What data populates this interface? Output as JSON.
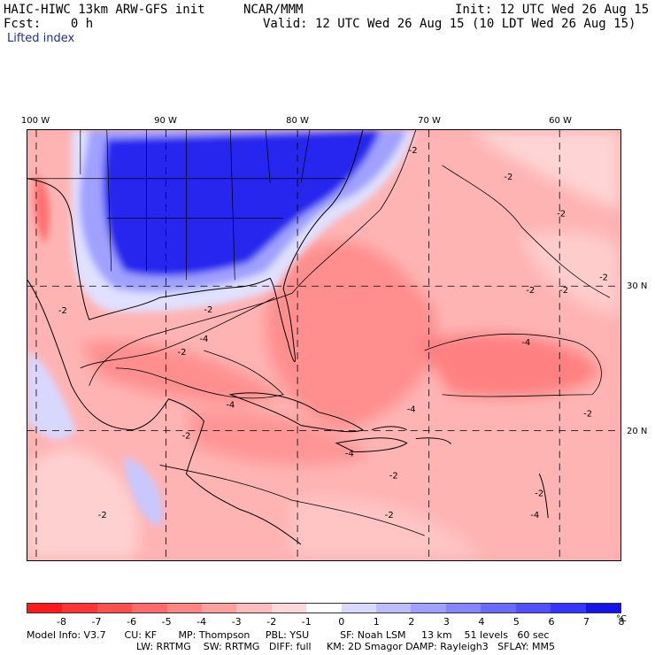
{
  "header": {
    "model": "HAIC-HIWC 13km ARW-GFS init",
    "org": "NCAR/MMM",
    "init": "Init: 12 UTC Wed 26 Aug 15",
    "fcst": "Fcst:    0 h",
    "valid": "Valid: 12 UTC Wed 26 Aug 15 (10 LDT Wed 26 Aug 15)",
    "field": "Lifted index"
  },
  "axes": {
    "lon_labels": [
      "100 W",
      "90 W",
      "80 W",
      "70 W",
      "60 W"
    ],
    "lat_labels": [
      "30 N",
      "20 N"
    ]
  },
  "colorbar": {
    "ticks": [
      "-8",
      "-7",
      "-6",
      "-5",
      "-4",
      "-3",
      "-2",
      "-1",
      "0",
      "1",
      "2",
      "3",
      "4",
      "5",
      "6",
      "7",
      "8"
    ],
    "unit": "°C",
    "colors": [
      "#ff1a1a",
      "#ff3535",
      "#ff5050",
      "#ff6a6a",
      "#ff8585",
      "#ffa0a0",
      "#ffbcbc",
      "#ffd9d9",
      "#ffffff",
      "#dadaff",
      "#bcbcff",
      "#a0a0ff",
      "#8585ff",
      "#6a6aff",
      "#5050ff",
      "#3535ff",
      "#1414e6"
    ]
  },
  "contour_labels": [
    "-2",
    "-2",
    "-2",
    "-2",
    "-2",
    "-2",
    "-2",
    "-2",
    "-4",
    "-4",
    "-4",
    "-2",
    "-2",
    "-4",
    "-2",
    "-2",
    "-4",
    "-2",
    "-2",
    "-4",
    "-2"
  ],
  "footer": {
    "line1": "Model Info: V3.7      CU: KF       MP: Thompson     PBL: YSU          SF: Noah LSM     13 km    51 levels   60 sec",
    "line2": "LW: RRTMG    SW: RRTMG   DIFF: full     KM: 2D Smagor DAMP: Rayleigh3   SFLAY: MM5"
  }
}
